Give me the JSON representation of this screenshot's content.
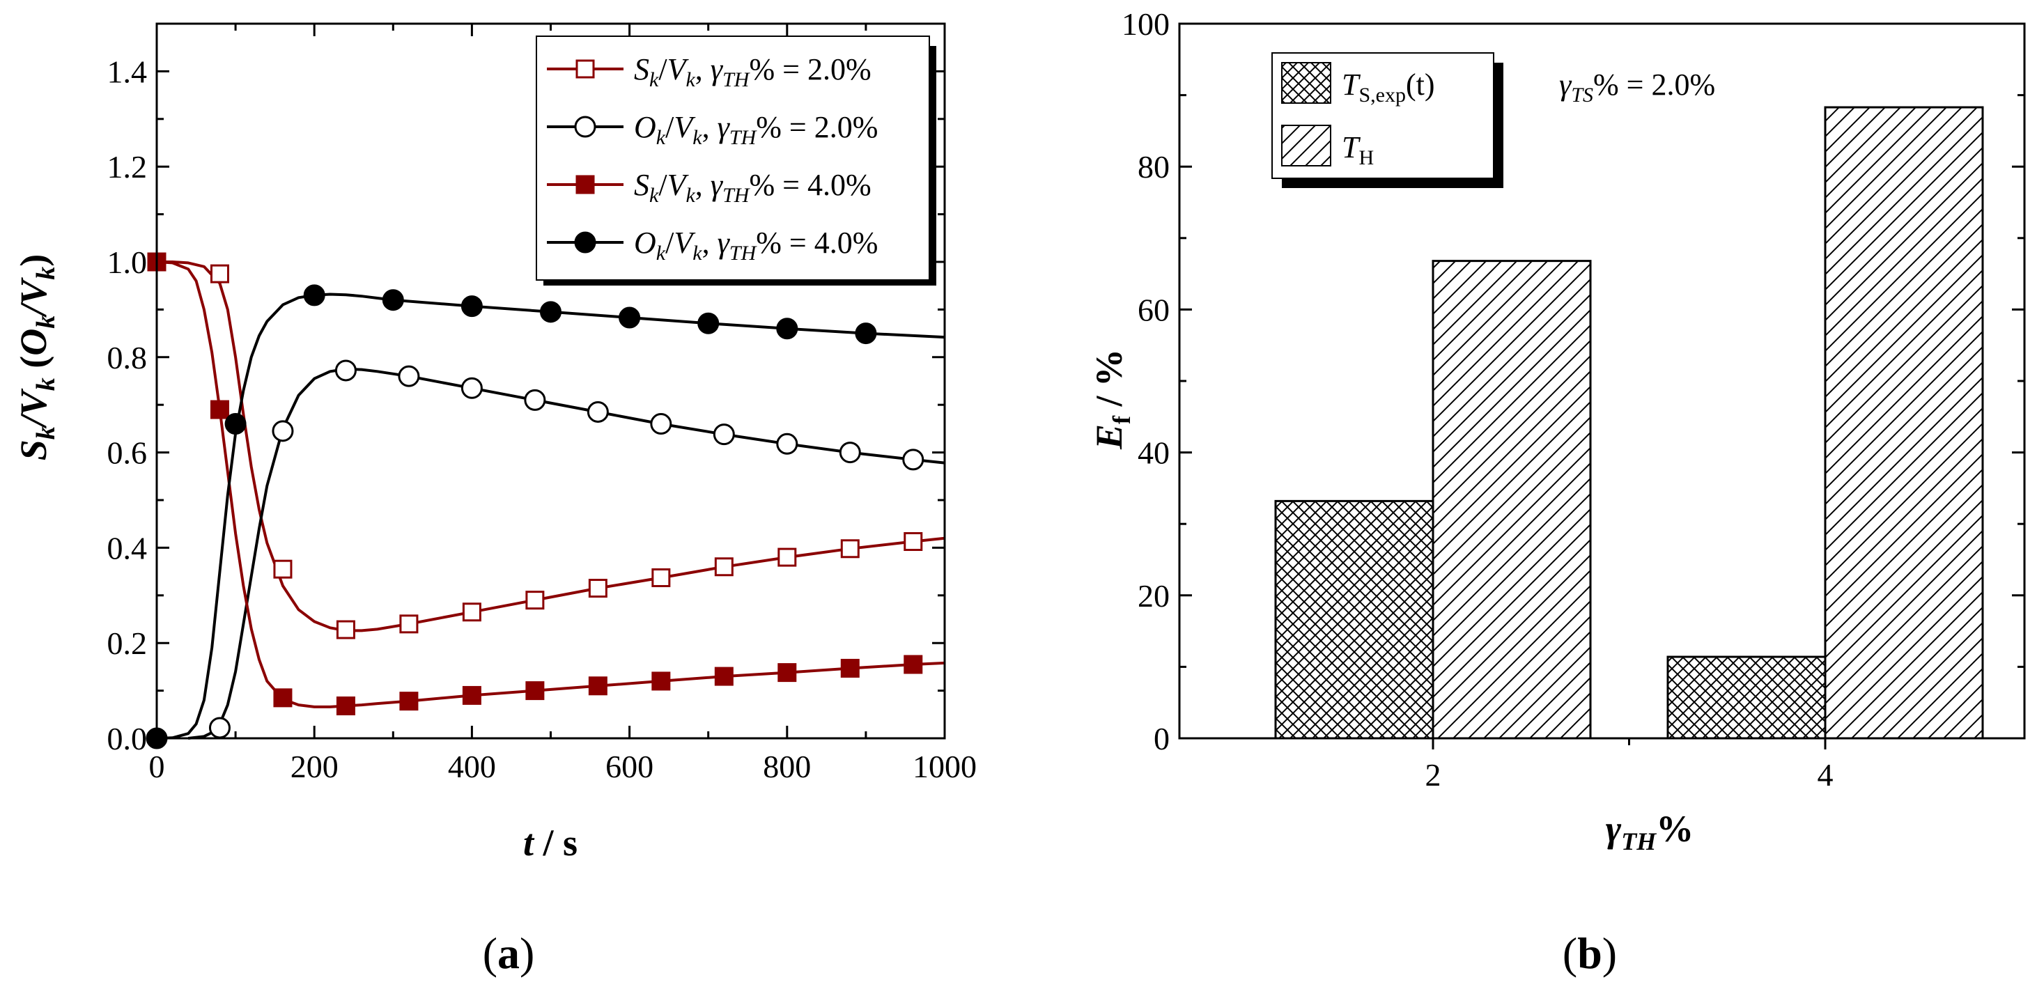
{
  "chart_data": [
    {
      "panel": "(a)",
      "panel_letter": "a",
      "type": "line",
      "xlabel": "t / s",
      "xlabel_var": "t",
      "xlabel_unit": " / s",
      "ylabel": "S_k/V_k (O_k/V_k)",
      "xlim": [
        0,
        1000
      ],
      "ylim": [
        0,
        1.5
      ],
      "x_ticks": [
        "0",
        "200",
        "400",
        "600",
        "800",
        "1000"
      ],
      "y_ticks": [
        "0.0",
        "0.2",
        "0.4",
        "0.6",
        "0.8",
        "1.0",
        "1.2",
        "1.4"
      ],
      "legend_position": "top-right",
      "series": [
        {
          "name": "S_k/V_k, γ_TH% = 2.0%",
          "num": "S",
          "den": "V",
          "value_text": "% = 2.0%",
          "color": "#8B0000",
          "marker": "square-open",
          "x": [
            0,
            80,
            160,
            240,
            320,
            400,
            480,
            560,
            640,
            720,
            800,
            880,
            960
          ],
          "y": [
            1.0,
            0.975,
            0.355,
            0.228,
            0.24,
            0.265,
            0.29,
            0.315,
            0.337,
            0.36,
            0.38,
            0.398,
            0.413
          ],
          "curve_x": [
            0,
            20,
            40,
            60,
            80,
            90,
            100,
            110,
            120,
            130,
            140,
            160,
            180,
            200,
            220,
            240,
            260,
            280,
            320,
            400,
            480,
            560,
            640,
            720,
            800,
            880,
            960,
            1000
          ],
          "curve_y": [
            1.0,
            1.0,
            0.998,
            0.99,
            0.955,
            0.9,
            0.8,
            0.68,
            0.57,
            0.48,
            0.41,
            0.32,
            0.27,
            0.245,
            0.232,
            0.226,
            0.226,
            0.229,
            0.24,
            0.265,
            0.29,
            0.315,
            0.337,
            0.36,
            0.38,
            0.398,
            0.413,
            0.42
          ]
        },
        {
          "name": "O_k/V_k, γ_TH% = 2.0%",
          "num": "O",
          "den": "V",
          "value_text": "% = 2.0%",
          "color": "#000000",
          "marker": "circle-open",
          "x": [
            80,
            160,
            240,
            320,
            400,
            480,
            560,
            640,
            720,
            800,
            880,
            960
          ],
          "y": [
            0.022,
            0.645,
            0.772,
            0.76,
            0.735,
            0.71,
            0.685,
            0.66,
            0.638,
            0.618,
            0.6,
            0.585
          ],
          "curve_x": [
            40,
            60,
            70,
            80,
            90,
            100,
            110,
            120,
            130,
            140,
            160,
            180,
            200,
            220,
            240,
            260,
            280,
            320,
            400,
            480,
            560,
            640,
            720,
            800,
            880,
            960,
            1000
          ],
          "curve_y": [
            0.0,
            0.004,
            0.012,
            0.03,
            0.07,
            0.14,
            0.24,
            0.34,
            0.44,
            0.53,
            0.65,
            0.72,
            0.755,
            0.77,
            0.775,
            0.774,
            0.77,
            0.76,
            0.735,
            0.71,
            0.685,
            0.66,
            0.638,
            0.618,
            0.6,
            0.585,
            0.578
          ]
        },
        {
          "name": "S_k/V_k, γ_TH% = 4.0%",
          "num": "S",
          "den": "V",
          "value_text": "% = 4.0%",
          "color": "#8B0000",
          "marker": "square-filled",
          "x": [
            0,
            80,
            160,
            240,
            320,
            400,
            480,
            560,
            640,
            720,
            800,
            880,
            960
          ],
          "y": [
            1.0,
            0.69,
            0.085,
            0.068,
            0.078,
            0.09,
            0.1,
            0.11,
            0.12,
            0.13,
            0.138,
            0.147,
            0.155
          ],
          "curve_x": [
            0,
            20,
            40,
            50,
            60,
            70,
            80,
            90,
            100,
            110,
            120,
            130,
            140,
            160,
            180,
            200,
            220,
            240,
            260,
            280,
            320,
            400,
            480,
            560,
            640,
            720,
            800,
            880,
            960,
            1000
          ],
          "curve_y": [
            1.0,
            0.998,
            0.985,
            0.96,
            0.9,
            0.81,
            0.69,
            0.56,
            0.43,
            0.32,
            0.23,
            0.165,
            0.12,
            0.082,
            0.07,
            0.066,
            0.066,
            0.068,
            0.07,
            0.073,
            0.078,
            0.09,
            0.1,
            0.11,
            0.12,
            0.13,
            0.138,
            0.147,
            0.155,
            0.158
          ]
        },
        {
          "name": "O_k/V_k, γ_TH% = 4.0%",
          "num": "O",
          "den": "V",
          "value_text": "% = 4.0%",
          "color": "#000000",
          "marker": "circle-filled",
          "x": [
            0,
            100,
            200,
            300,
            400,
            500,
            600,
            700,
            800,
            900
          ],
          "y": [
            0.0,
            0.66,
            0.93,
            0.92,
            0.907,
            0.895,
            0.883,
            0.871,
            0.86,
            0.85
          ],
          "curve_x": [
            0,
            20,
            40,
            50,
            60,
            70,
            80,
            90,
            100,
            110,
            120,
            130,
            140,
            160,
            180,
            200,
            220,
            240,
            260,
            280,
            300,
            400,
            500,
            600,
            700,
            800,
            900,
            1000
          ],
          "curve_y": [
            0.0,
            0.001,
            0.01,
            0.03,
            0.08,
            0.19,
            0.35,
            0.51,
            0.64,
            0.73,
            0.8,
            0.845,
            0.875,
            0.91,
            0.925,
            0.93,
            0.932,
            0.931,
            0.928,
            0.924,
            0.92,
            0.907,
            0.895,
            0.883,
            0.871,
            0.86,
            0.85,
            0.842
          ]
        }
      ]
    },
    {
      "panel": "(b)",
      "panel_letter": "b",
      "type": "bar",
      "title": "γ_TS% = 2.0%",
      "title_value": "% = 2.0%",
      "xlabel": "γ_TH%",
      "ylabel": "E_f / %",
      "ylabel_unit": " / %",
      "categories": [
        "2",
        "4"
      ],
      "ylim": [
        0,
        100
      ],
      "y_ticks": [
        "0",
        "20",
        "40",
        "60",
        "80",
        "100"
      ],
      "legend_position": "top-left",
      "series": [
        {
          "name": "T_S,exp(t)",
          "sub": "S,exp",
          "suffix": "(t)",
          "pattern": "crosshatch",
          "values": [
            33.2,
            11.4
          ]
        },
        {
          "name": "T_H",
          "sub": "H",
          "suffix": "",
          "pattern": "diagonal",
          "values": [
            66.8,
            88.3
          ]
        }
      ]
    }
  ]
}
